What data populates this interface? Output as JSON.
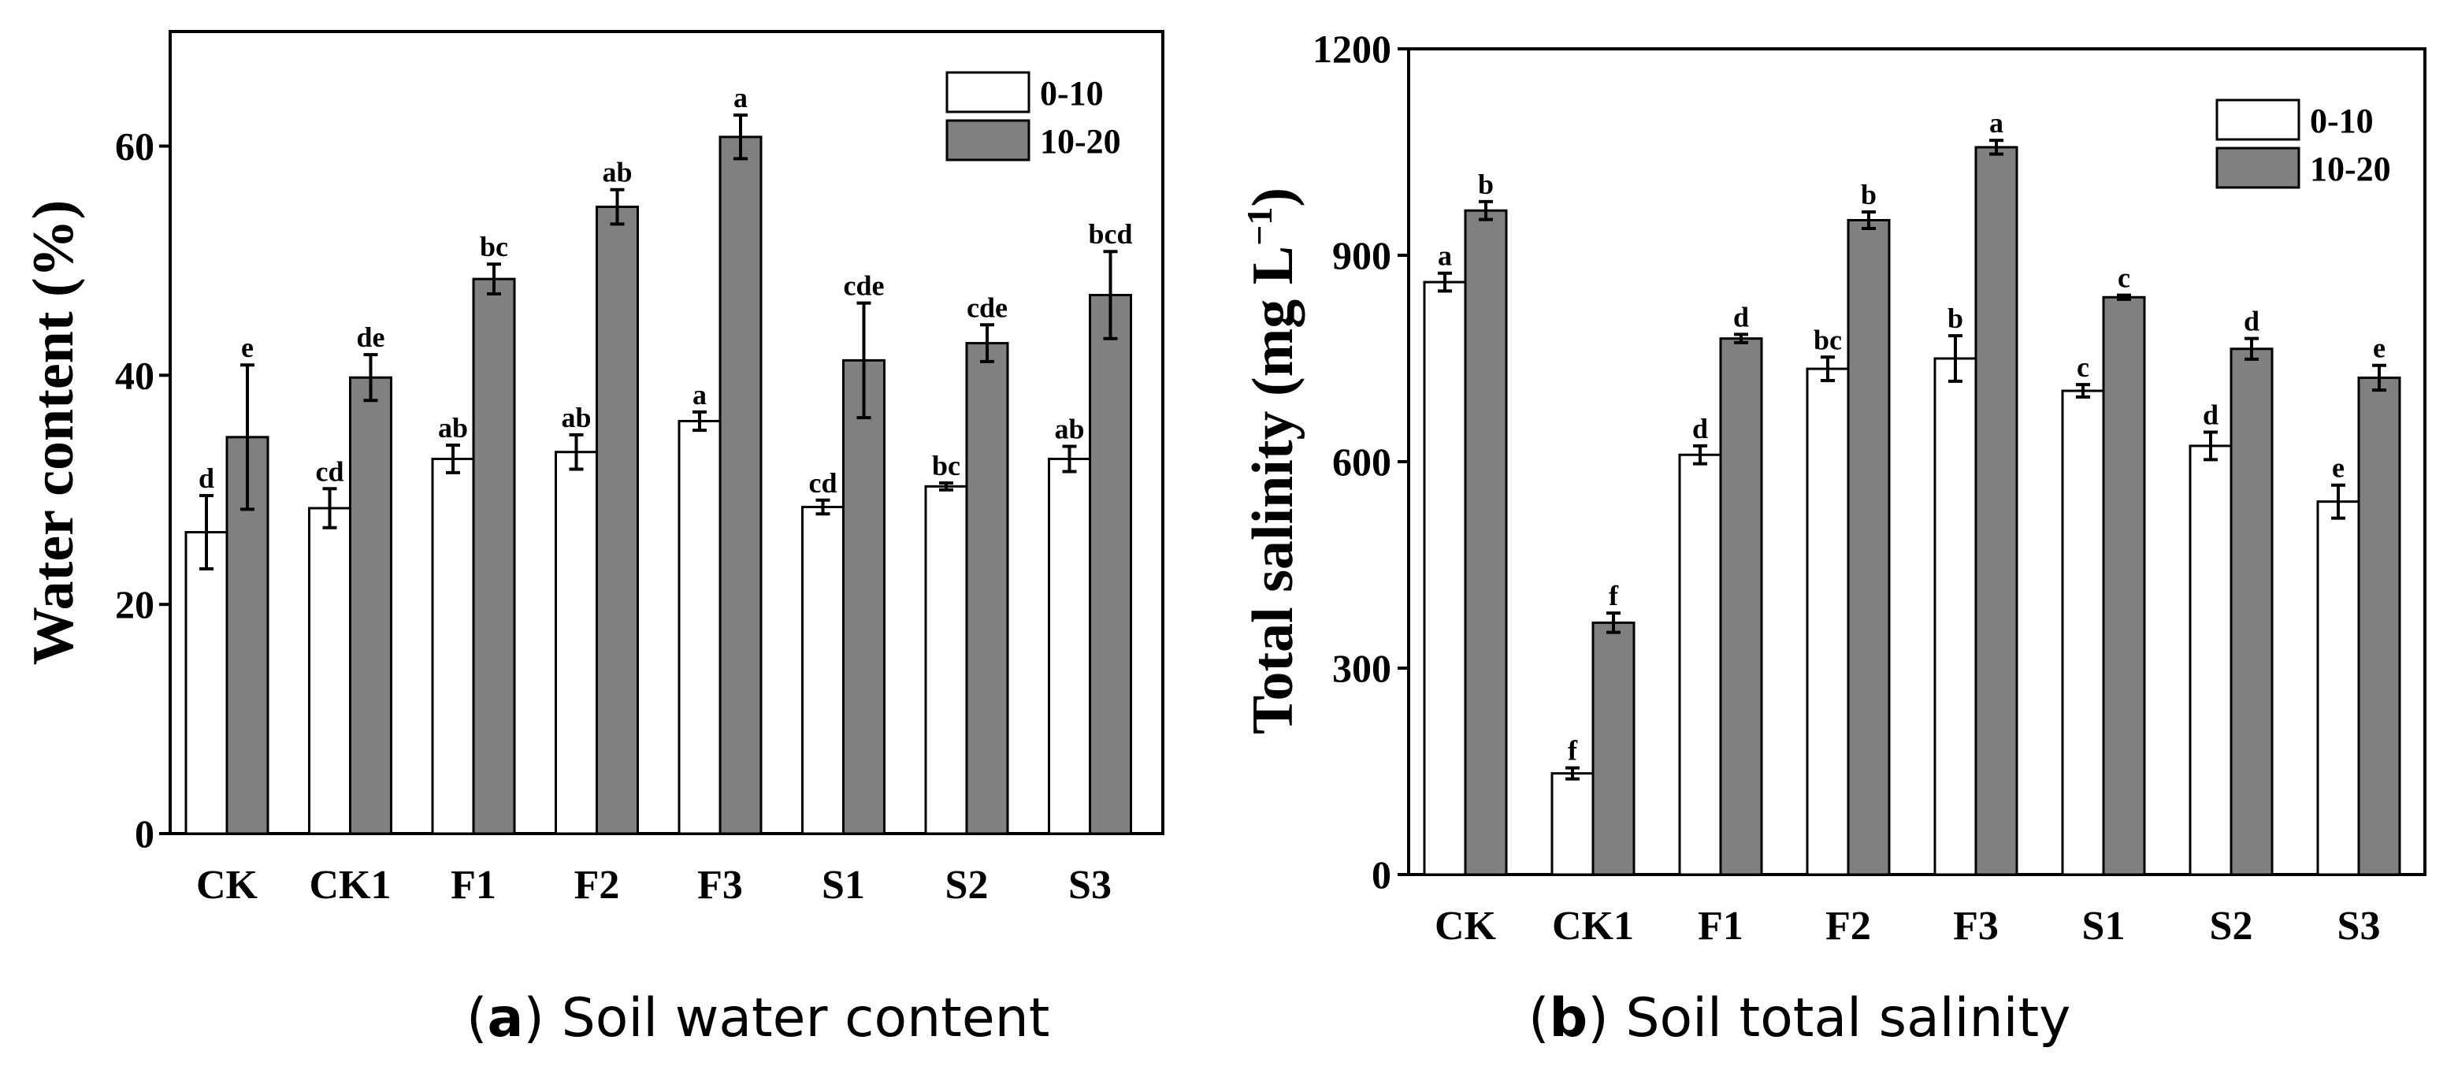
{
  "charts": [
    {
      "caption": {
        "prefix": "(",
        "letter": "a",
        "suffix": ") Soil water content"
      },
      "legend": [
        "0-10",
        "10-20"
      ],
      "colors": {
        "shallow": "#ffffff",
        "deep": "#808080",
        "stroke": "#000000"
      },
      "yticks": [
        "0",
        "20",
        "40",
        "60"
      ]
    },
    {
      "caption": {
        "prefix": "(",
        "letter": "b",
        "suffix": ") Soil total salinity"
      },
      "legend": [
        "0-10",
        "10-20"
      ],
      "colors": {
        "shallow": "#ffffff",
        "deep": "#808080",
        "stroke": "#000000"
      },
      "yticks": [
        "0",
        "300",
        "600",
        "900",
        "1200"
      ],
      "ylabel_unit_sup": "−1"
    }
  ],
  "chart_data": [
    {
      "type": "bar",
      "ylabel": "Water content (%)",
      "ylim": [
        0,
        70
      ],
      "yticks": [
        0,
        20,
        40,
        60
      ],
      "categories": [
        "CK",
        "CK1",
        "F1",
        "F2",
        "F3",
        "S1",
        "S2",
        "S3"
      ],
      "series": [
        {
          "name": "0-10",
          "values": [
            26.3,
            28.4,
            32.7,
            33.3,
            36.0,
            28.5,
            30.3,
            32.7
          ],
          "errors": [
            3.2,
            1.7,
            1.2,
            1.5,
            0.8,
            0.6,
            0.3,
            1.1
          ],
          "labels": [
            "d",
            "cd",
            "ab",
            "ab",
            "a",
            "cd",
            "bc",
            "ab"
          ]
        },
        {
          "name": "10-20",
          "values": [
            34.6,
            39.8,
            48.4,
            54.7,
            60.8,
            41.3,
            42.8,
            47.0
          ],
          "errors": [
            6.3,
            2.0,
            1.3,
            1.5,
            1.9,
            5.0,
            1.6,
            3.8
          ],
          "labels": [
            "e",
            "de",
            "bc",
            "ab",
            "a",
            "cde",
            "cde",
            "bcd"
          ]
        }
      ],
      "legend": "top-right",
      "grid": false
    },
    {
      "type": "bar",
      "ylabel": "Total salinity (mg L",
      "ylim": [
        0,
        1200
      ],
      "yticks": [
        0,
        300,
        600,
        900,
        1200
      ],
      "categories": [
        "CK",
        "CK1",
        "F1",
        "F2",
        "F3",
        "S1",
        "S2",
        "S3"
      ],
      "series": [
        {
          "name": "0-10",
          "values": [
            861,
            147,
            610,
            735,
            750,
            703,
            623,
            542
          ],
          "errors": [
            13,
            8,
            13,
            17,
            33,
            9,
            20,
            24
          ],
          "labels": [
            "a",
            "f",
            "d",
            "bc",
            "b",
            "c",
            "d",
            "e"
          ]
        },
        {
          "name": "10-20",
          "values": [
            965,
            366,
            779,
            951,
            1057,
            839,
            764,
            722
          ],
          "errors": [
            13,
            14,
            6,
            12,
            10,
            3,
            15,
            18
          ],
          "labels": [
            "b",
            "f",
            "d",
            "b",
            "a",
            "c",
            "d",
            "e"
          ]
        }
      ],
      "legend": "top-right",
      "grid": false
    }
  ]
}
